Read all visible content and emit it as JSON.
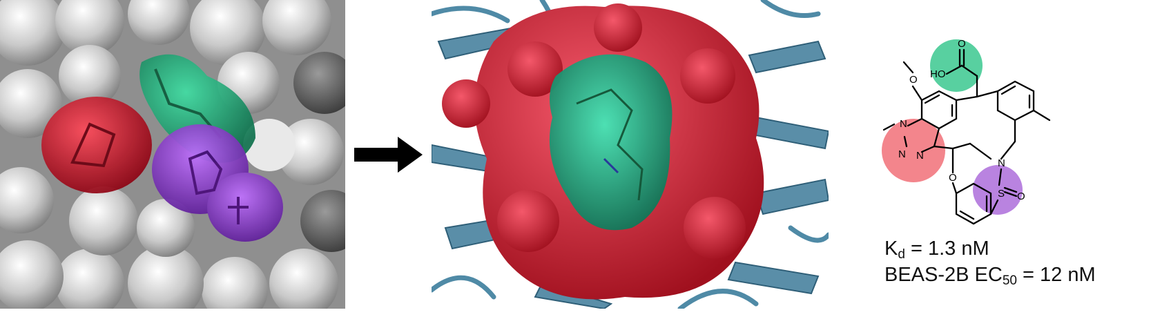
{
  "figure": {
    "panel_left": {
      "description_colors": {
        "surface": "#bdbdbd",
        "red_group": "#d0152a",
        "green_group": "#12a070",
        "purple_group": "#8a2bd6"
      }
    },
    "panel_middle": {
      "description_colors": {
        "pocket_surface": "#d42d3e",
        "ligand_surface": "#17a07a",
        "protein_cartoon": "#4f8aa6"
      }
    },
    "arrow": {
      "color": "#000000"
    },
    "structure": {
      "atoms": {
        "methoxy_o": "O",
        "carbonyl_o": "O",
        "hydroxyl": "HO",
        "triazole_n1": "N",
        "triazole_n2": "N",
        "triazole_n3": "N",
        "ring_o": "O",
        "sulfonamide_n": "N",
        "sulfur": "S",
        "sulfonyl_o": "O"
      },
      "highlights": {
        "green": "#20c080",
        "red": "#ef5c66",
        "purple": "#a15ad6"
      }
    },
    "properties": {
      "kd_symbol": "K",
      "kd_sub": "d",
      "kd_value": " = 1.3 nM",
      "ec_prefix": "BEAS-2B EC",
      "ec_sub": "50",
      "ec_value": " = 12 nM"
    }
  }
}
